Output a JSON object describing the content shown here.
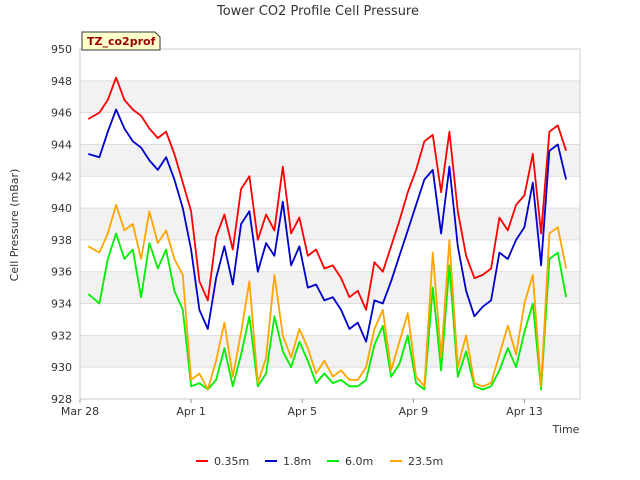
{
  "chart_data": {
    "type": "line",
    "title": "Tower CO2 Profile Cell Pressure",
    "xlabel": "Time",
    "ylabel": "Cell Pressure (mBar)",
    "badge": "TZ_co2prof",
    "ylim": [
      928,
      950
    ],
    "yticks": [
      928,
      930,
      932,
      934,
      936,
      938,
      940,
      942,
      944,
      946,
      948,
      950
    ],
    "ytick_labels": [
      "928",
      "930",
      "932",
      "934",
      "936",
      "938",
      "940",
      "942",
      "944",
      "946",
      "948",
      "950"
    ],
    "xlim_days": [
      0,
      18
    ],
    "xticks": [
      {
        "day": 0,
        "label": "Mar 28"
      },
      {
        "day": 4,
        "label": "Apr 1"
      },
      {
        "day": 8,
        "label": "Apr 5"
      },
      {
        "day": 12,
        "label": "Apr 9"
      },
      {
        "day": 16,
        "label": "Apr 13"
      }
    ],
    "grid": "horizontal-bands",
    "legend_position": "bottom",
    "series": [
      {
        "name": "0.35m",
        "color": "#ff0000",
        "x": [
          0.3,
          0.7,
          1.0,
          1.3,
          1.6,
          1.9,
          2.2,
          2.5,
          2.8,
          3.1,
          3.4,
          3.7,
          4.0,
          4.3,
          4.6,
          4.9,
          5.2,
          5.5,
          5.8,
          6.1,
          6.4,
          6.7,
          7.0,
          7.3,
          7.6,
          7.9,
          8.2,
          8.5,
          8.8,
          9.1,
          9.4,
          9.7,
          10.0,
          10.3,
          10.6,
          10.9,
          11.2,
          11.5,
          11.8,
          12.1,
          12.4,
          12.7,
          13.0,
          13.3,
          13.6,
          13.9,
          14.2,
          14.5,
          14.8,
          15.1,
          15.4,
          15.7,
          16.0,
          16.3,
          16.6,
          16.9,
          17.2,
          17.5
        ],
        "values": [
          945.6,
          946.0,
          946.8,
          948.2,
          946.8,
          946.2,
          945.8,
          945.0,
          944.4,
          944.8,
          943.4,
          941.6,
          939.8,
          935.4,
          934.2,
          938.2,
          939.6,
          937.4,
          941.2,
          942.0,
          938.0,
          939.6,
          938.6,
          942.6,
          938.4,
          939.4,
          937.0,
          937.4,
          936.2,
          936.4,
          935.6,
          934.4,
          934.8,
          933.6,
          936.6,
          936.0,
          937.6,
          939.2,
          941.0,
          942.4,
          944.2,
          944.6,
          941.0,
          944.8,
          939.8,
          937.0,
          935.6,
          935.8,
          936.2,
          939.4,
          938.6,
          940.2,
          940.8,
          943.4,
          938.4,
          944.8,
          945.2,
          943.6
        ]
      },
      {
        "name": "1.8m",
        "color": "#0000cc",
        "x": [
          0.3,
          0.7,
          1.0,
          1.3,
          1.6,
          1.9,
          2.2,
          2.5,
          2.8,
          3.1,
          3.4,
          3.7,
          4.0,
          4.3,
          4.6,
          4.9,
          5.2,
          5.5,
          5.8,
          6.1,
          6.4,
          6.7,
          7.0,
          7.3,
          7.6,
          7.9,
          8.2,
          8.5,
          8.8,
          9.1,
          9.4,
          9.7,
          10.0,
          10.3,
          10.6,
          10.9,
          11.2,
          11.5,
          11.8,
          12.1,
          12.4,
          12.7,
          13.0,
          13.3,
          13.6,
          13.9,
          14.2,
          14.5,
          14.8,
          15.1,
          15.4,
          15.7,
          16.0,
          16.3,
          16.6,
          16.9,
          17.2,
          17.5
        ],
        "values": [
          943.4,
          943.2,
          944.8,
          946.2,
          945.0,
          944.2,
          943.8,
          943.0,
          942.4,
          943.2,
          941.8,
          940.0,
          937.4,
          933.6,
          932.4,
          935.6,
          937.6,
          935.2,
          939.0,
          939.8,
          936.0,
          937.8,
          937.0,
          940.4,
          936.4,
          937.6,
          935.0,
          935.2,
          934.2,
          934.4,
          933.6,
          932.4,
          932.8,
          931.6,
          934.2,
          934.0,
          935.4,
          937.0,
          938.6,
          940.2,
          941.8,
          942.4,
          938.4,
          942.6,
          937.6,
          934.8,
          933.2,
          933.8,
          934.2,
          937.2,
          936.8,
          938.0,
          938.8,
          941.6,
          936.4,
          943.6,
          944.0,
          941.8
        ]
      },
      {
        "name": "6.0m",
        "color": "#00ee00",
        "x": [
          0.3,
          0.7,
          1.0,
          1.3,
          1.6,
          1.9,
          2.2,
          2.5,
          2.8,
          3.1,
          3.4,
          3.7,
          4.0,
          4.3,
          4.6,
          4.9,
          5.2,
          5.5,
          5.8,
          6.1,
          6.4,
          6.7,
          7.0,
          7.3,
          7.6,
          7.9,
          8.2,
          8.5,
          8.8,
          9.1,
          9.4,
          9.7,
          10.0,
          10.3,
          10.6,
          10.9,
          11.2,
          11.5,
          11.8,
          12.1,
          12.4,
          12.7,
          13.0,
          13.3,
          13.6,
          13.9,
          14.2,
          14.5,
          14.8,
          15.1,
          15.4,
          15.7,
          16.0,
          16.3,
          16.6,
          16.9,
          17.2,
          17.5
        ],
        "values": [
          934.6,
          934.0,
          936.8,
          938.4,
          936.8,
          937.4,
          934.4,
          937.8,
          936.2,
          937.4,
          934.8,
          933.6,
          928.8,
          929.0,
          928.6,
          929.2,
          931.2,
          928.8,
          930.8,
          933.2,
          928.8,
          929.6,
          933.2,
          931.0,
          930.0,
          931.6,
          930.4,
          929.0,
          929.6,
          929.0,
          929.2,
          928.8,
          928.8,
          929.2,
          931.4,
          932.6,
          929.4,
          930.2,
          932.0,
          929.0,
          928.6,
          935.0,
          929.8,
          936.4,
          929.4,
          931.0,
          928.8,
          928.6,
          928.8,
          929.8,
          931.2,
          930.0,
          932.2,
          934.0,
          928.6,
          936.8,
          937.2,
          934.4
        ]
      },
      {
        "name": "23.5m",
        "color": "#ffa500",
        "x": [
          0.3,
          0.7,
          1.0,
          1.3,
          1.6,
          1.9,
          2.2,
          2.5,
          2.8,
          3.1,
          3.4,
          3.7,
          4.0,
          4.3,
          4.6,
          4.9,
          5.2,
          5.5,
          5.8,
          6.1,
          6.4,
          6.7,
          7.0,
          7.3,
          7.6,
          7.9,
          8.2,
          8.5,
          8.8,
          9.1,
          9.4,
          9.7,
          10.0,
          10.3,
          10.6,
          10.9,
          11.2,
          11.5,
          11.8,
          12.1,
          12.4,
          12.7,
          13.0,
          13.3,
          13.6,
          13.9,
          14.2,
          14.5,
          14.8,
          15.1,
          15.4,
          15.7,
          16.0,
          16.3,
          16.6,
          16.9,
          17.2,
          17.5
        ],
        "values": [
          937.6,
          937.2,
          938.4,
          940.2,
          938.6,
          939.0,
          936.8,
          939.8,
          937.8,
          938.6,
          936.8,
          935.8,
          929.2,
          929.6,
          928.6,
          930.4,
          932.8,
          929.4,
          932.2,
          935.4,
          929.0,
          930.6,
          935.8,
          932.0,
          930.6,
          932.4,
          931.2,
          929.6,
          930.4,
          929.4,
          929.8,
          929.2,
          929.2,
          930.0,
          932.4,
          933.6,
          929.8,
          931.6,
          933.4,
          929.4,
          928.8,
          937.2,
          930.6,
          938.0,
          930.0,
          932.0,
          929.0,
          928.8,
          929.0,
          930.8,
          932.6,
          930.8,
          934.0,
          935.8,
          928.8,
          938.4,
          938.8,
          936.2
        ]
      }
    ]
  }
}
